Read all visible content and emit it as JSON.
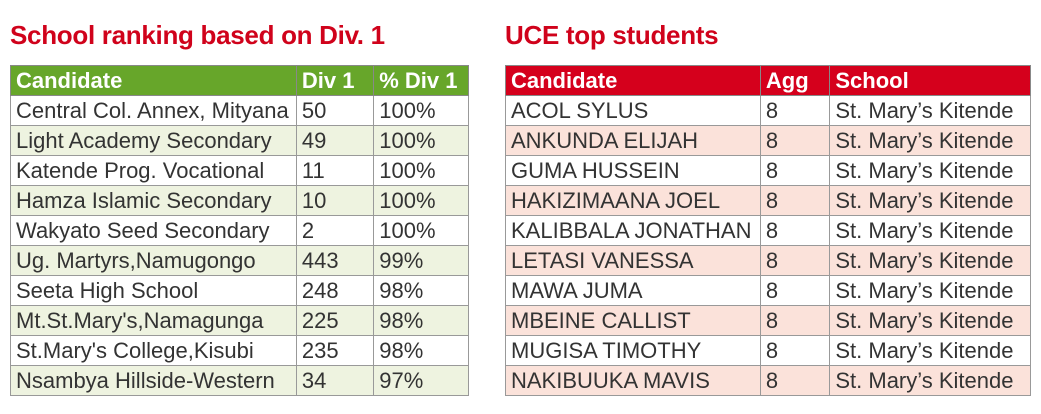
{
  "colors": {
    "title": "#d0021b",
    "green_header": "#67a62a",
    "red_header": "#d5001c"
  },
  "school_ranking": {
    "title": "School ranking based on Div. 1",
    "headers": [
      "Candidate",
      "Div 1",
      "% Div 1"
    ],
    "rows": [
      [
        "Central Col. Annex, Mityana",
        "50",
        "100%"
      ],
      [
        "Light Academy Secondary",
        "49",
        "100%"
      ],
      [
        "Katende Prog. Vocational",
        "11",
        "100%"
      ],
      [
        "Hamza Islamic Secondary",
        "10",
        "100%"
      ],
      [
        "Wakyato Seed Secondary",
        "2",
        "100%"
      ],
      [
        "Ug. Martyrs,Namugongo",
        "443",
        "99%"
      ],
      [
        "Seeta High School",
        "248",
        "98%"
      ],
      [
        "Mt.St.Mary's,Namagunga",
        "225",
        "98%"
      ],
      [
        "St.Mary's College,Kisubi",
        "235",
        "98%"
      ],
      [
        "Nsambya Hillside-Western",
        "34",
        "97%"
      ]
    ]
  },
  "top_students": {
    "title": "UCE top students",
    "headers": [
      "Candidate",
      "Agg",
      "School"
    ],
    "rows": [
      [
        "ACOL SYLUS",
        "8",
        "St. Mary’s Kitende"
      ],
      [
        "ANKUNDA ELIJAH",
        "8",
        "St. Mary’s Kitende"
      ],
      [
        "GUMA HUSSEIN",
        "8",
        "St. Mary’s Kitende"
      ],
      [
        "HAKIZIMAANA JOEL",
        "8",
        "St. Mary’s Kitende"
      ],
      [
        "KALIBBALA JONATHAN",
        "8",
        "St. Mary’s Kitende"
      ],
      [
        "LETASI VANESSA",
        "8",
        "St. Mary’s Kitende"
      ],
      [
        "MAWA JUMA",
        "8",
        "St. Mary’s Kitende"
      ],
      [
        "MBEINE CALLIST",
        "8",
        "St. Mary’s Kitende"
      ],
      [
        "MUGISA TIMOTHY",
        "8",
        "St. Mary’s Kitende"
      ],
      [
        "NAKIBUUKA  MAVIS",
        "8",
        "St. Mary’s Kitende"
      ]
    ]
  }
}
